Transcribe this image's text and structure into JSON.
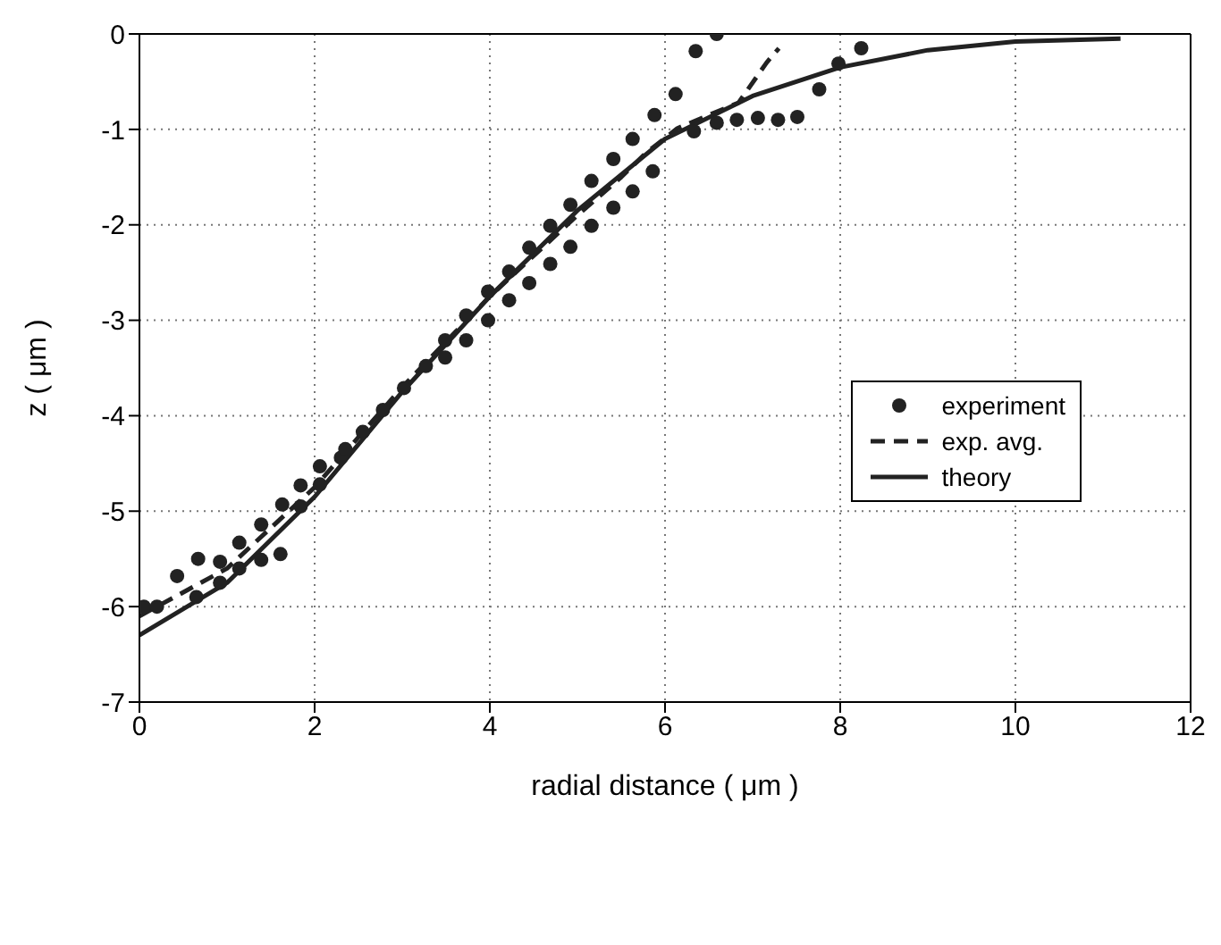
{
  "chart_data": {
    "type": "line",
    "xlabel": "radial distance ( μm )",
    "ylabel": "z ( μm )",
    "xlim": [
      0,
      12
    ],
    "xticks": [
      0,
      2,
      4,
      6,
      8,
      10,
      12
    ],
    "ylim": [
      -7,
      0
    ],
    "yticks": [
      -7,
      -6,
      -5,
      -4,
      -3,
      -2,
      -1,
      0
    ],
    "grid": true,
    "legend": "right",
    "series": [
      {
        "name": "experiment",
        "type": "scatter",
        "marker": "circle",
        "color": "#222222",
        "x": [
          0.05,
          0.2,
          0.43,
          0.65,
          0.67,
          0.92,
          0.92,
          1.14,
          1.14,
          1.39,
          1.39,
          1.61,
          1.63,
          1.84,
          1.84,
          2.06,
          2.06,
          2.3,
          2.35,
          2.55,
          2.78,
          3.02,
          3.27,
          3.49,
          3.49,
          3.73,
          3.73,
          3.98,
          3.98,
          4.22,
          4.22,
          4.45,
          4.45,
          4.69,
          4.69,
          4.92,
          4.92,
          5.16,
          5.16,
          5.41,
          5.41,
          5.63,
          5.63,
          5.86,
          5.88,
          6.12,
          6.33,
          6.35,
          6.59,
          6.59,
          6.82,
          7.06,
          7.29,
          7.51,
          7.76,
          7.98,
          8.24
        ],
        "values": [
          -6.0,
          -6.0,
          -5.68,
          -5.9,
          -5.5,
          -5.75,
          -5.53,
          -5.6,
          -5.33,
          -5.51,
          -5.14,
          -5.45,
          -4.93,
          -4.95,
          -4.73,
          -4.72,
          -4.53,
          -4.44,
          -4.35,
          -4.17,
          -3.94,
          -3.71,
          -3.48,
          -3.39,
          -3.21,
          -3.21,
          -2.95,
          -3.0,
          -2.7,
          -2.79,
          -2.49,
          -2.61,
          -2.24,
          -2.41,
          -2.01,
          -2.23,
          -1.79,
          -2.01,
          -1.54,
          -1.82,
          -1.31,
          -1.65,
          -1.1,
          -1.44,
          -0.85,
          -0.63,
          -1.02,
          -0.18,
          -0.93,
          0.0,
          -0.9,
          -0.88,
          -0.9,
          -0.87,
          -0.58,
          -0.31,
          -0.15
        ]
      },
      {
        "name": "exp. avg.",
        "line_style": "dashed",
        "marker": "none",
        "color": "#222222",
        "x": [
          0,
          1,
          2,
          3,
          4,
          5,
          5.5,
          5.78,
          6.14,
          6.5,
          6.84,
          7.16,
          7.3
        ],
        "values": [
          -6.1,
          -5.6,
          -4.75,
          -3.7,
          -2.75,
          -1.9,
          -1.5,
          -1.25,
          -0.99,
          -0.85,
          -0.72,
          -0.3,
          -0.15
        ]
      },
      {
        "name": "theory",
        "line_style": "solid",
        "marker": "none",
        "color": "#222222",
        "x": [
          0,
          1,
          2,
          3,
          4,
          5,
          6,
          7,
          8,
          9,
          10,
          11.2
        ],
        "values": [
          -6.3,
          -5.75,
          -4.85,
          -3.75,
          -2.75,
          -1.85,
          -1.1,
          -0.65,
          -0.35,
          -0.17,
          -0.08,
          -0.05
        ]
      }
    ]
  }
}
